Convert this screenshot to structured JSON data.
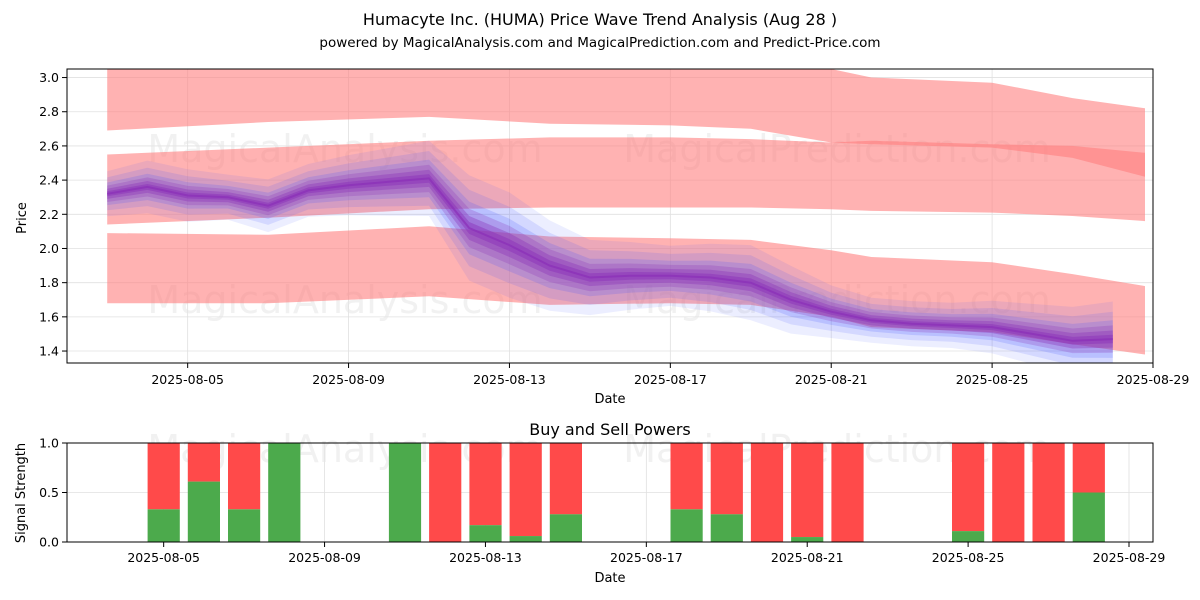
{
  "chart_data": {
    "type": "area",
    "title": "Humacyte Inc. (HUMA) Price Wave Trend Analysis (Aug 28 )",
    "subtitle": "powered by MagicalAnalysis.com and MagicalPrediction.com and Predict-Price.com",
    "watermarks": [
      "MagicalAnalysis.com",
      "MagicalPrediction.com"
    ],
    "price_panel": {
      "xlabel": "Date",
      "ylabel": "Price",
      "ylim": [
        1.33,
        3.05
      ],
      "xlim": [
        "2025-08-02",
        "2025-08-29"
      ],
      "x_ticks": [
        "2025-08-05",
        "2025-08-09",
        "2025-08-13",
        "2025-08-17",
        "2025-08-21",
        "2025-08-25",
        "2025-08-29"
      ],
      "y_ticks": [
        "1.4",
        "1.6",
        "1.8",
        "2.0",
        "2.2",
        "2.4",
        "2.6",
        "2.8",
        "3.0"
      ],
      "grid": true,
      "dates": [
        "2025-08-03",
        "2025-08-04",
        "2025-08-05",
        "2025-08-06",
        "2025-08-07",
        "2025-08-08",
        "2025-08-09",
        "2025-08-10",
        "2025-08-11",
        "2025-08-12",
        "2025-08-13",
        "2025-08-14",
        "2025-08-15",
        "2025-08-16",
        "2025-08-17",
        "2025-08-18",
        "2025-08-19",
        "2025-08-20",
        "2025-08-21",
        "2025-08-22",
        "2025-08-23",
        "2025-08-24",
        "2025-08-25",
        "2025-08-26",
        "2025-08-27",
        "2025-08-28"
      ],
      "bands": [
        {
          "name": "upper band",
          "x": [
            "2025-08-03",
            "2025-08-07",
            "2025-08-11",
            "2025-08-14",
            "2025-08-17",
            "2025-08-19",
            "2025-08-21",
            "2025-08-22",
            "2025-08-25",
            "2025-08-27",
            "2025-08-28.8"
          ],
          "upper": [
            3.05,
            3.05,
            3.05,
            3.05,
            3.05,
            3.05,
            3.05,
            3.0,
            2.97,
            2.88,
            2.82
          ],
          "lower": [
            2.69,
            2.74,
            2.77,
            2.73,
            2.72,
            2.7,
            2.62,
            2.61,
            2.59,
            2.53,
            2.42
          ]
        },
        {
          "name": "middle band",
          "x": [
            "2025-08-03",
            "2025-08-07",
            "2025-08-11",
            "2025-08-14",
            "2025-08-17",
            "2025-08-19",
            "2025-08-21",
            "2025-08-22",
            "2025-08-25",
            "2025-08-27",
            "2025-08-28.8"
          ],
          "upper": [
            2.55,
            2.59,
            2.63,
            2.65,
            2.65,
            2.64,
            2.62,
            2.63,
            2.61,
            2.6,
            2.56
          ],
          "lower": [
            2.14,
            2.18,
            2.23,
            2.24,
            2.24,
            2.24,
            2.23,
            2.22,
            2.21,
            2.19,
            2.16
          ]
        },
        {
          "name": "lower band",
          "x": [
            "2025-08-03",
            "2025-08-07",
            "2025-08-11",
            "2025-08-14",
            "2025-08-17",
            "2025-08-19",
            "2025-08-21",
            "2025-08-22",
            "2025-08-25",
            "2025-08-27",
            "2025-08-28.8"
          ],
          "upper": [
            2.09,
            2.08,
            2.13,
            2.07,
            2.06,
            2.05,
            1.99,
            1.95,
            1.92,
            1.85,
            1.78
          ],
          "lower": [
            1.68,
            1.68,
            1.72,
            1.67,
            1.68,
            1.67,
            1.6,
            1.54,
            1.51,
            1.44,
            1.38
          ]
        }
      ],
      "trend": [
        2.32,
        2.36,
        2.31,
        2.3,
        2.25,
        2.34,
        2.37,
        2.39,
        2.41,
        2.12,
        2.02,
        1.9,
        1.83,
        1.84,
        1.84,
        1.83,
        1.8,
        1.7,
        1.63,
        1.58,
        1.56,
        1.55,
        1.54,
        1.5,
        1.46,
        1.47
      ],
      "trend_spread": [
        0.06,
        0.07,
        0.07,
        0.06,
        0.07,
        0.07,
        0.08,
        0.09,
        0.1,
        0.14,
        0.14,
        0.12,
        0.1,
        0.09,
        0.08,
        0.09,
        0.1,
        0.09,
        0.07,
        0.06,
        0.06,
        0.06,
        0.07,
        0.08,
        0.09,
        0.1
      ]
    },
    "power_panel": {
      "title": "Buy and Sell Powers",
      "xlabel": "Date",
      "ylabel": "Signal Strength",
      "ylim": [
        0,
        1.0
      ],
      "y_ticks": [
        "0.0",
        "0.5",
        "1.0"
      ],
      "x_ticks": [
        "2025-08-05",
        "2025-08-09",
        "2025-08-13",
        "2025-08-17",
        "2025-08-21",
        "2025-08-25",
        "2025-08-29"
      ],
      "series": [
        {
          "name": "Buy",
          "color": "#4caa4c"
        },
        {
          "name": "Sell",
          "color": "#ff4a4a"
        }
      ],
      "dates": [
        "2025-08-05",
        "2025-08-06",
        "2025-08-07",
        "2025-08-08",
        "2025-08-11",
        "2025-08-12",
        "2025-08-13",
        "2025-08-14",
        "2025-08-15",
        "2025-08-18",
        "2025-08-19",
        "2025-08-20",
        "2025-08-21",
        "2025-08-22",
        "2025-08-25",
        "2025-08-26",
        "2025-08-27",
        "2025-08-28"
      ],
      "buy": [
        0.33,
        0.61,
        0.33,
        1.0,
        1.0,
        0.0,
        0.17,
        0.06,
        0.28,
        0.33,
        0.28,
        0.0,
        0.05,
        0.0,
        0.11,
        0.0,
        0.0,
        0.5
      ]
    },
    "colors": {
      "band": "#ff7f7f",
      "trend_blue": "#4455ff",
      "trend_purple": "#8a2fb8",
      "buy": "#4caa4c",
      "sell": "#ff4a4a",
      "grid": "#e0e0e0"
    }
  }
}
